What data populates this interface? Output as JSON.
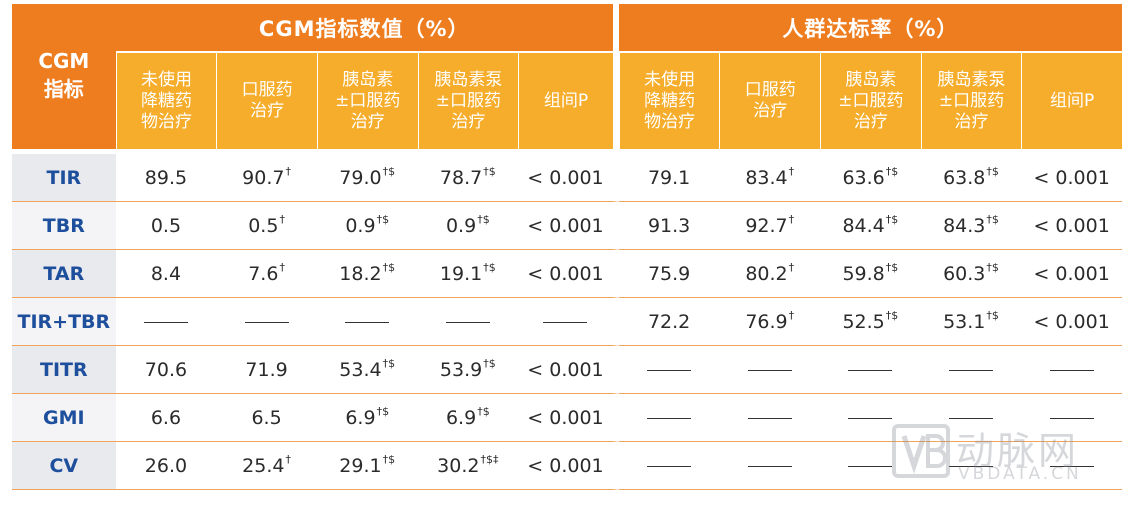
{
  "header": {
    "corner_label": "CGM\n指标",
    "group1_title": "CGM指标数值（%）",
    "group2_title": "人群达标率（%）",
    "subcolumns": [
      "未使用\n降糖药\n物治疗",
      "口服药\n治疗",
      "胰岛素\n±口服药\n治疗",
      "胰岛素泵\n±口服药\n治疗",
      "组间P"
    ]
  },
  "rows": [
    {
      "label": "TIR",
      "cells": [
        [
          "89.5",
          ""
        ],
        [
          "90.7",
          "†"
        ],
        [
          "79.0",
          "†$"
        ],
        [
          "78.7",
          "†$"
        ],
        [
          "< 0.001",
          ""
        ],
        [
          "79.1",
          ""
        ],
        [
          "83.4",
          "†"
        ],
        [
          "63.6",
          "†$"
        ],
        [
          "63.8",
          "†$"
        ],
        [
          "< 0.001",
          ""
        ]
      ]
    },
    {
      "label": "TBR",
      "cells": [
        [
          "0.5",
          ""
        ],
        [
          "0.5",
          "†"
        ],
        [
          "0.9",
          "†$"
        ],
        [
          "0.9",
          "†$"
        ],
        [
          "< 0.001",
          ""
        ],
        [
          "91.3",
          ""
        ],
        [
          "92.7",
          "†"
        ],
        [
          "84.4",
          "†$"
        ],
        [
          "84.3",
          "†$"
        ],
        [
          "< 0.001",
          ""
        ]
      ]
    },
    {
      "label": "TAR",
      "cells": [
        [
          "8.4",
          ""
        ],
        [
          "7.6",
          "†"
        ],
        [
          "18.2",
          "†$"
        ],
        [
          "19.1",
          "†$"
        ],
        [
          "< 0.001",
          ""
        ],
        [
          "75.9",
          ""
        ],
        [
          "80.2",
          "†"
        ],
        [
          "59.8",
          "†$"
        ],
        [
          "60.3",
          "†$"
        ],
        [
          "< 0.001",
          ""
        ]
      ]
    },
    {
      "label": "TIR+TBR",
      "cells": [
        [
          "—",
          ""
        ],
        [
          "—",
          ""
        ],
        [
          "—",
          ""
        ],
        [
          "—",
          ""
        ],
        [
          "—",
          ""
        ],
        [
          "72.2",
          ""
        ],
        [
          "76.9",
          "†"
        ],
        [
          "52.5",
          "†$"
        ],
        [
          "53.1",
          "†$"
        ],
        [
          "< 0.001",
          ""
        ]
      ]
    },
    {
      "label": "TITR",
      "cells": [
        [
          "70.6",
          ""
        ],
        [
          "71.9",
          ""
        ],
        [
          "53.4",
          "†$"
        ],
        [
          "53.9",
          "†$"
        ],
        [
          "< 0.001",
          ""
        ],
        [
          "—",
          ""
        ],
        [
          "—",
          ""
        ],
        [
          "—",
          ""
        ],
        [
          "—",
          ""
        ],
        [
          "—",
          ""
        ]
      ]
    },
    {
      "label": "GMI",
      "cells": [
        [
          "6.6",
          ""
        ],
        [
          "6.5",
          ""
        ],
        [
          "6.9",
          "†$"
        ],
        [
          "6.9",
          "†$"
        ],
        [
          "< 0.001",
          ""
        ],
        [
          "—",
          ""
        ],
        [
          "—",
          ""
        ],
        [
          "—",
          ""
        ],
        [
          "—",
          ""
        ],
        [
          "—",
          ""
        ]
      ]
    },
    {
      "label": "CV",
      "cells": [
        [
          "26.0",
          ""
        ],
        [
          "25.4",
          "†"
        ],
        [
          "29.1",
          "†$"
        ],
        [
          "30.2",
          "†$‡"
        ],
        [
          "< 0.001",
          ""
        ],
        [
          "—",
          ""
        ],
        [
          "—",
          ""
        ],
        [
          "—",
          ""
        ],
        [
          "—",
          ""
        ],
        [
          "—",
          ""
        ]
      ]
    }
  ],
  "watermark": {
    "cn": "动脉网",
    "en": "VBDATA.CN"
  },
  "colors": {
    "header_dark": "#ee7d1f",
    "header_light": "#f6ad2b",
    "label_text": "#1e4f9c",
    "row_line": "#f0a45a"
  }
}
